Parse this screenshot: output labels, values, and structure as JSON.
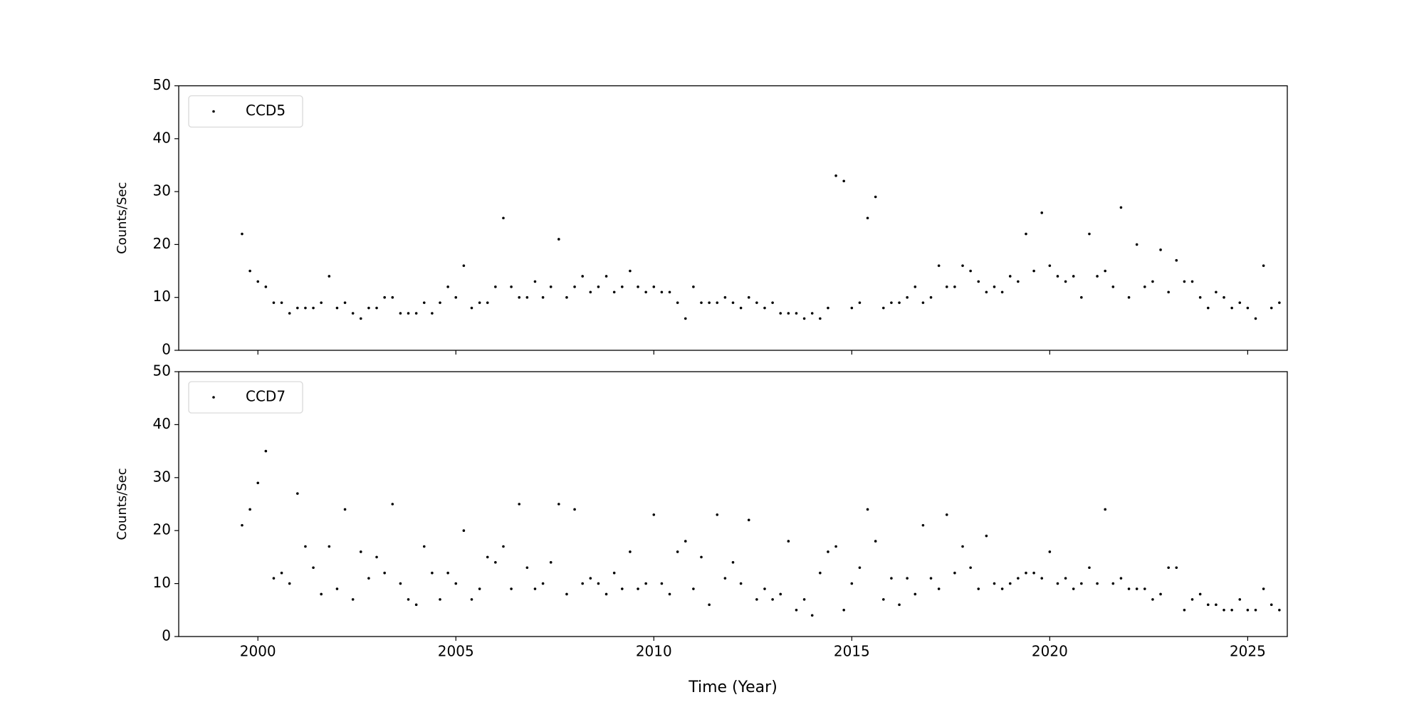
{
  "chart_data": [
    {
      "type": "scatter",
      "ylabel": "Counts/Sec",
      "legend": "upper left",
      "xlim": [
        1998,
        2026
      ],
      "ylim": [
        0,
        50
      ],
      "yticks": [
        0,
        10,
        20,
        30,
        40,
        50
      ],
      "x": [
        1999.6,
        1999.8,
        2000.0,
        2000.2,
        2000.4,
        2000.6,
        2000.8,
        2001.0,
        2001.2,
        2001.4,
        2001.6,
        2001.8,
        2002.0,
        2002.2,
        2002.4,
        2002.6,
        2002.8,
        2003.0,
        2003.2,
        2003.4,
        2003.6,
        2003.8,
        2004.0,
        2004.2,
        2004.4,
        2004.6,
        2004.8,
        2005.0,
        2005.2,
        2005.4,
        2005.6,
        2005.8,
        2006.0,
        2006.2,
        2006.4,
        2006.6,
        2006.8,
        2007.0,
        2007.2,
        2007.4,
        2007.6,
        2007.8,
        2008.0,
        2008.2,
        2008.4,
        2008.6,
        2008.8,
        2009.0,
        2009.2,
        2009.4,
        2009.6,
        2009.8,
        2010.0,
        2010.2,
        2010.4,
        2010.6,
        2010.8,
        2011.0,
        2011.2,
        2011.4,
        2011.6,
        2011.8,
        2012.0,
        2012.2,
        2012.4,
        2012.6,
        2012.8,
        2013.0,
        2013.2,
        2013.4,
        2013.6,
        2013.8,
        2014.0,
        2014.2,
        2014.4,
        2014.6,
        2014.8,
        2015.0,
        2015.2,
        2015.4,
        2015.6,
        2015.8,
        2016.0,
        2016.2,
        2016.4,
        2016.6,
        2016.8,
        2017.0,
        2017.2,
        2017.4,
        2017.6,
        2017.8,
        2018.0,
        2018.2,
        2018.4,
        2018.6,
        2018.8,
        2019.0,
        2019.2,
        2019.4,
        2019.6,
        2019.8,
        2020.0,
        2020.2,
        2020.4,
        2020.6,
        2020.8,
        2021.0,
        2021.2,
        2021.4,
        2021.6,
        2021.8,
        2022.0,
        2022.2,
        2022.4,
        2022.6,
        2022.8,
        2023.0,
        2023.2,
        2023.4,
        2023.6,
        2023.8,
        2024.0,
        2024.2,
        2024.4,
        2024.6,
        2024.8,
        2025.0,
        2025.2,
        2025.4,
        2025.6,
        2025.8
      ],
      "series": [
        {
          "name": "CCD5",
          "color": "#000000",
          "values": [
            22,
            15,
            13,
            12,
            9,
            9,
            7,
            8,
            8,
            8,
            9,
            14,
            8,
            9,
            7,
            6,
            8,
            8,
            10,
            10,
            7,
            7,
            7,
            9,
            7,
            9,
            12,
            10,
            16,
            8,
            9,
            9,
            12,
            25,
            12,
            10,
            10,
            13,
            10,
            12,
            21,
            10,
            12,
            14,
            11,
            12,
            14,
            11,
            12,
            15,
            12,
            11,
            12,
            11,
            11,
            9,
            6,
            12,
            9,
            9,
            9,
            10,
            9,
            8,
            10,
            9,
            8,
            9,
            7,
            7,
            7,
            6,
            7,
            6,
            8,
            33,
            32,
            8,
            9,
            25,
            29,
            8,
            9,
            9,
            10,
            12,
            9,
            10,
            16,
            12,
            12,
            16,
            15,
            13,
            11,
            12,
            11,
            14,
            13,
            22,
            15,
            26,
            16,
            14,
            13,
            14,
            10,
            22,
            14,
            15,
            12,
            27,
            10,
            20,
            12,
            13,
            19,
            11,
            17,
            13,
            13,
            10,
            8,
            11,
            10,
            8,
            9,
            8,
            6,
            16,
            8,
            9
          ]
        }
      ]
    },
    {
      "type": "scatter",
      "ylabel": "Counts/Sec",
      "xlabel": "Time (Year)",
      "legend": "upper left",
      "xlim": [
        1998,
        2026
      ],
      "xticks": [
        2000,
        2005,
        2010,
        2015,
        2020,
        2025
      ],
      "ylim": [
        0,
        50
      ],
      "yticks": [
        0,
        10,
        20,
        30,
        40,
        50
      ],
      "x": [
        1999.6,
        1999.8,
        2000.0,
        2000.2,
        2000.4,
        2000.6,
        2000.8,
        2001.0,
        2001.2,
        2001.4,
        2001.6,
        2001.8,
        2002.0,
        2002.2,
        2002.4,
        2002.6,
        2002.8,
        2003.0,
        2003.2,
        2003.4,
        2003.6,
        2003.8,
        2004.0,
        2004.2,
        2004.4,
        2004.6,
        2004.8,
        2005.0,
        2005.2,
        2005.4,
        2005.6,
        2005.8,
        2006.0,
        2006.2,
        2006.4,
        2006.6,
        2006.8,
        2007.0,
        2007.2,
        2007.4,
        2007.6,
        2007.8,
        2008.0,
        2008.2,
        2008.4,
        2008.6,
        2008.8,
        2009.0,
        2009.2,
        2009.4,
        2009.6,
        2009.8,
        2010.0,
        2010.2,
        2010.4,
        2010.6,
        2010.8,
        2011.0,
        2011.2,
        2011.4,
        2011.6,
        2011.8,
        2012.0,
        2012.2,
        2012.4,
        2012.6,
        2012.8,
        2013.0,
        2013.2,
        2013.4,
        2013.6,
        2013.8,
        2014.0,
        2014.2,
        2014.4,
        2014.6,
        2014.8,
        2015.0,
        2015.2,
        2015.4,
        2015.6,
        2015.8,
        2016.0,
        2016.2,
        2016.4,
        2016.6,
        2016.8,
        2017.0,
        2017.2,
        2017.4,
        2017.6,
        2017.8,
        2018.0,
        2018.2,
        2018.4,
        2018.6,
        2018.8,
        2019.0,
        2019.2,
        2019.4,
        2019.6,
        2019.8,
        2020.0,
        2020.2,
        2020.4,
        2020.6,
        2020.8,
        2021.0,
        2021.2,
        2021.4,
        2021.6,
        2021.8,
        2022.0,
        2022.2,
        2022.4,
        2022.6,
        2022.8,
        2023.0,
        2023.2,
        2023.4,
        2023.6,
        2023.8,
        2024.0,
        2024.2,
        2024.4,
        2024.6,
        2024.8,
        2025.0,
        2025.2,
        2025.4,
        2025.6,
        2025.8
      ],
      "series": [
        {
          "name": "CCD7",
          "color": "#000000",
          "values": [
            21,
            24,
            29,
            35,
            11,
            12,
            10,
            27,
            17,
            13,
            8,
            17,
            9,
            24,
            7,
            16,
            11,
            15,
            12,
            25,
            10,
            7,
            6,
            17,
            12,
            7,
            12,
            10,
            20,
            7,
            9,
            15,
            14,
            17,
            9,
            25,
            13,
            9,
            10,
            14,
            25,
            8,
            24,
            10,
            11,
            10,
            8,
            12,
            9,
            16,
            9,
            10,
            23,
            10,
            8,
            16,
            18,
            9,
            15,
            6,
            23,
            11,
            14,
            10,
            22,
            7,
            9,
            7,
            8,
            18,
            5,
            7,
            4,
            12,
            16,
            17,
            5,
            10,
            13,
            24,
            18,
            7,
            11,
            6,
            11,
            8,
            21,
            11,
            9,
            23,
            12,
            17,
            13,
            9,
            19,
            10,
            9,
            10,
            11,
            12,
            12,
            11,
            16,
            10,
            11,
            9,
            10,
            13,
            10,
            24,
            10,
            11,
            9,
            9,
            9,
            7,
            8,
            13,
            13,
            5,
            7,
            8,
            6,
            6,
            5,
            5,
            7,
            5,
            5,
            9,
            6,
            5
          ]
        }
      ]
    }
  ]
}
